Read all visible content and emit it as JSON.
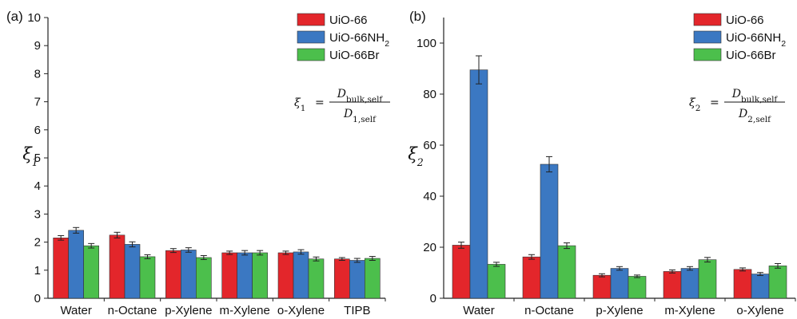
{
  "colors": {
    "UiO-66": "#e3262b",
    "UiO-66NH2": "#3b78c2",
    "UiO-66Br": "#4cbf4c"
  },
  "chart_data": [
    {
      "type": "bar",
      "panel_label": "(a)",
      "categories": [
        "Water",
        "n-Octane",
        "p-Xylene",
        "m-Xylene",
        "o-Xylene",
        "TIPB"
      ],
      "series": [
        {
          "name": "UiO-66",
          "color_key": "UiO-66",
          "values": [
            2.15,
            2.25,
            1.7,
            1.62,
            1.62,
            1.4
          ],
          "errors": [
            0.08,
            0.1,
            0.07,
            0.06,
            0.06,
            0.05
          ]
        },
        {
          "name": "UiO-66NH2",
          "color_key": "UiO-66NH2",
          "values": [
            2.42,
            1.92,
            1.72,
            1.62,
            1.65,
            1.35
          ],
          "errors": [
            0.1,
            0.09,
            0.08,
            0.08,
            0.08,
            0.07
          ]
        },
        {
          "name": "UiO-66Br",
          "color_key": "UiO-66Br",
          "values": [
            1.87,
            1.48,
            1.45,
            1.62,
            1.4,
            1.42
          ],
          "errors": [
            0.08,
            0.07,
            0.07,
            0.08,
            0.07,
            0.07
          ]
        }
      ],
      "ylabel": "ξ1",
      "ylim": [
        0,
        10
      ],
      "yticks": [
        0,
        1,
        2,
        3,
        4,
        5,
        6,
        7,
        8,
        9,
        10
      ],
      "legend": [
        "UiO-66",
        "UiO-66NH2",
        "UiO-66Br"
      ],
      "legend_position": "top-right",
      "annotation": {
        "lhs": "ξ1",
        "num": "Dbulk,self",
        "den": "D1,self"
      }
    },
    {
      "type": "bar",
      "panel_label": "(b)",
      "categories": [
        "Water",
        "n-Octane",
        "p-Xylene",
        "m-Xylene",
        "o-Xylene"
      ],
      "series": [
        {
          "name": "UiO-66",
          "color_key": "UiO-66",
          "values": [
            20.8,
            16.2,
            9.0,
            10.5,
            11.3
          ],
          "errors": [
            1.2,
            0.9,
            0.6,
            0.6,
            0.6
          ]
        },
        {
          "name": "UiO-66NH2",
          "color_key": "UiO-66NH2",
          "values": [
            89.5,
            52.5,
            11.7,
            11.7,
            9.5
          ],
          "errors": [
            5.5,
            3.0,
            0.7,
            0.7,
            0.6
          ]
        },
        {
          "name": "UiO-66Br",
          "color_key": "UiO-66Br",
          "values": [
            13.3,
            20.6,
            8.6,
            15.1,
            12.7
          ],
          "errors": [
            0.8,
            1.1,
            0.5,
            0.9,
            0.9
          ]
        }
      ],
      "ylabel": "ξ2",
      "ylim": [
        0,
        110
      ],
      "yticks": [
        0,
        20,
        40,
        60,
        80,
        100
      ],
      "legend": [
        "UiO-66",
        "UiO-66NH2",
        "UiO-66Br"
      ],
      "legend_position": "top-right",
      "annotation": {
        "lhs": "ξ2",
        "num": "Dbulk,self",
        "den": "D2,self"
      }
    }
  ]
}
